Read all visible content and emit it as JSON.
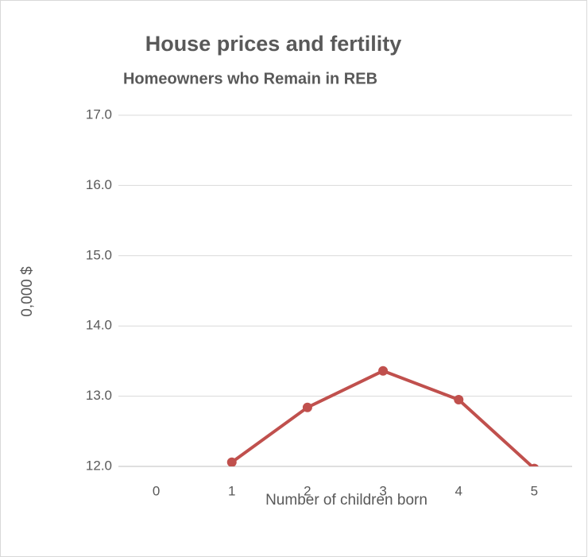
{
  "chart_data": {
    "type": "line",
    "title": "House prices and fertility",
    "subtitle": "Homeowners who Remain in REB",
    "x_label": "Number of children born",
    "y_label": "0,000 $",
    "categories": [
      "0",
      "1",
      "2",
      "3",
      "4",
      "5"
    ],
    "series": [
      {
        "name": "Homeowners who Remain in REB",
        "color": "#c0504d",
        "values": [
          null,
          12.06,
          12.84,
          13.36,
          12.95,
          11.97
        ]
      }
    ],
    "ylim": [
      12,
      17
    ],
    "yticks": [
      {
        "value": 12,
        "label": "12.0"
      },
      {
        "value": 13,
        "label": "13.0"
      },
      {
        "value": 14,
        "label": "14.0"
      },
      {
        "value": 15,
        "label": "15.0"
      },
      {
        "value": 16,
        "label": "16.0"
      },
      {
        "value": 17,
        "label": "17.0"
      }
    ],
    "grid": true
  }
}
